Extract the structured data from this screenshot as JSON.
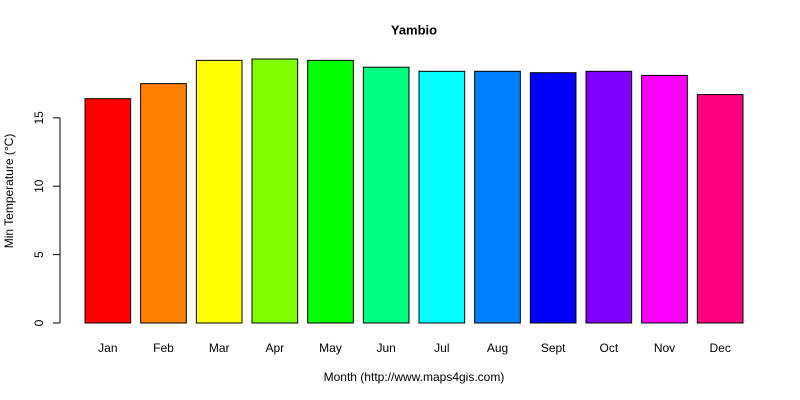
{
  "chart_data": {
    "type": "bar",
    "title": "Yambio",
    "x_label": "Month (http://www.maps4gis.com)",
    "y_label": "Min Temperature (°C)",
    "categories": [
      "Jan",
      "Feb",
      "Mar",
      "Apr",
      "May",
      "Jun",
      "Jul",
      "Aug",
      "Sept",
      "Oct",
      "Nov",
      "Dec"
    ],
    "values": [
      16.4,
      17.5,
      19.2,
      19.3,
      19.2,
      18.7,
      18.4,
      18.4,
      18.3,
      18.4,
      18.1,
      16.7
    ],
    "colors": [
      "#ff0000",
      "#ff8000",
      "#ffff00",
      "#80ff00",
      "#00ff00",
      "#00ff80",
      "#00ffff",
      "#0080ff",
      "#0000ff",
      "#8000ff",
      "#ff00ff",
      "#ff0080"
    ],
    "ylim": [
      0,
      19.3
    ],
    "yticks": [
      0,
      5,
      10,
      15
    ]
  }
}
